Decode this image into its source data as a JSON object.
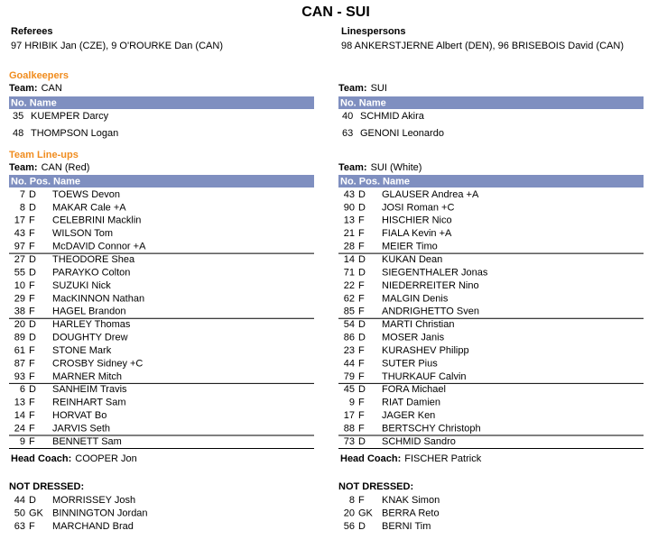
{
  "title": "CAN - SUI",
  "officials": {
    "referees": {
      "label": "Referees",
      "value": "97 HRIBIK Jan (CZE),  9 O'ROURKE Dan (CAN)"
    },
    "linespersons": {
      "label": "Linespersons",
      "value": "98 ANKERSTJERNE Albert (DEN), 96 BRISEBOIS David (CAN)"
    }
  },
  "goalkeepers": {
    "heading": "Goalkeepers",
    "teams": [
      {
        "team_label": "Team:",
        "team": "CAN",
        "header": "No. Name",
        "rows": [
          [
            "35",
            "KUEMPER Darcy"
          ],
          [
            "48",
            "THOMPSON Logan"
          ]
        ]
      },
      {
        "team_label": "Team:",
        "team": "SUI",
        "header": "No. Name",
        "rows": [
          [
            "40",
            "SCHMID Akira"
          ],
          [
            "63",
            "GENONI Leonardo"
          ]
        ]
      }
    ]
  },
  "lineups": {
    "heading": "Team Line-ups",
    "teams": [
      {
        "team_label": "Team:",
        "team": "CAN (Red)",
        "header": "No. Pos. Name",
        "groups": [
          [
            [
              "7",
              "D",
              "TOEWS Devon"
            ],
            [
              "8",
              "D",
              "MAKAR Cale  +A"
            ],
            [
              "17",
              "F",
              "CELEBRINI Macklin"
            ],
            [
              "43",
              "F",
              "WILSON Tom"
            ],
            [
              "97",
              "F",
              "McDAVID Connor  +A"
            ]
          ],
          [
            [
              "27",
              "D",
              "THEODORE Shea"
            ],
            [
              "55",
              "D",
              "PARAYKO Colton"
            ],
            [
              "10",
              "F",
              "SUZUKI Nick"
            ],
            [
              "29",
              "F",
              "MacKINNON Nathan"
            ],
            [
              "38",
              "F",
              "HAGEL Brandon"
            ]
          ],
          [
            [
              "20",
              "D",
              "HARLEY Thomas"
            ],
            [
              "89",
              "D",
              "DOUGHTY Drew"
            ],
            [
              "61",
              "F",
              "STONE Mark"
            ],
            [
              "87",
              "F",
              "CROSBY Sidney  +C"
            ],
            [
              "93",
              "F",
              "MARNER Mitch"
            ]
          ],
          [
            [
              "6",
              "D",
              "SANHEIM Travis"
            ],
            [
              "13",
              "F",
              "REINHART Sam"
            ],
            [
              "14",
              "F",
              "HORVAT Bo"
            ],
            [
              "24",
              "F",
              "JARVIS Seth"
            ]
          ],
          [
            [
              "9",
              "F",
              "BENNETT Sam"
            ]
          ]
        ],
        "coach_label": "Head Coach:",
        "coach": "COOPER Jon",
        "not_dressed_label": "NOT DRESSED:",
        "not_dressed": [
          [
            "44",
            "D",
            "MORRISSEY Josh"
          ],
          [
            "50",
            "GK",
            "BINNINGTON Jordan"
          ],
          [
            "63",
            "F",
            "MARCHAND Brad"
          ]
        ]
      },
      {
        "team_label": "Team:",
        "team": "SUI (White)",
        "header": "No. Pos. Name",
        "groups": [
          [
            [
              "43",
              "D",
              "GLAUSER Andrea  +A"
            ],
            [
              "90",
              "D",
              "JOSI Roman  +C"
            ],
            [
              "13",
              "F",
              "HISCHIER Nico"
            ],
            [
              "21",
              "F",
              "FIALA Kevin  +A"
            ],
            [
              "28",
              "F",
              "MEIER Timo"
            ]
          ],
          [
            [
              "14",
              "D",
              "KUKAN Dean"
            ],
            [
              "71",
              "D",
              "SIEGENTHALER Jonas"
            ],
            [
              "22",
              "F",
              "NIEDERREITER Nino"
            ],
            [
              "62",
              "F",
              "MALGIN Denis"
            ],
            [
              "85",
              "F",
              "ANDRIGHETTO Sven"
            ]
          ],
          [
            [
              "54",
              "D",
              "MARTI Christian"
            ],
            [
              "86",
              "D",
              "MOSER Janis"
            ],
            [
              "23",
              "F",
              "KURASHEV Philipp"
            ],
            [
              "44",
              "F",
              "SUTER Pius"
            ],
            [
              "79",
              "F",
              "THURKAUF Calvin"
            ]
          ],
          [
            [
              "45",
              "D",
              "FORA Michael"
            ],
            [
              "9",
              "F",
              "RIAT Damien"
            ],
            [
              "17",
              "F",
              "JAGER Ken"
            ],
            [
              "88",
              "F",
              "BERTSCHY Christoph"
            ]
          ],
          [
            [
              "73",
              "D",
              "SCHMID Sandro"
            ]
          ]
        ],
        "coach_label": "Head Coach:",
        "coach": "FISCHER Patrick",
        "not_dressed_label": "NOT DRESSED:",
        "not_dressed": [
          [
            "8",
            "F",
            "KNAK Simon"
          ],
          [
            "20",
            "GK",
            "BERRA Reto"
          ],
          [
            "56",
            "D",
            "BERNI Tim"
          ]
        ]
      }
    ]
  }
}
